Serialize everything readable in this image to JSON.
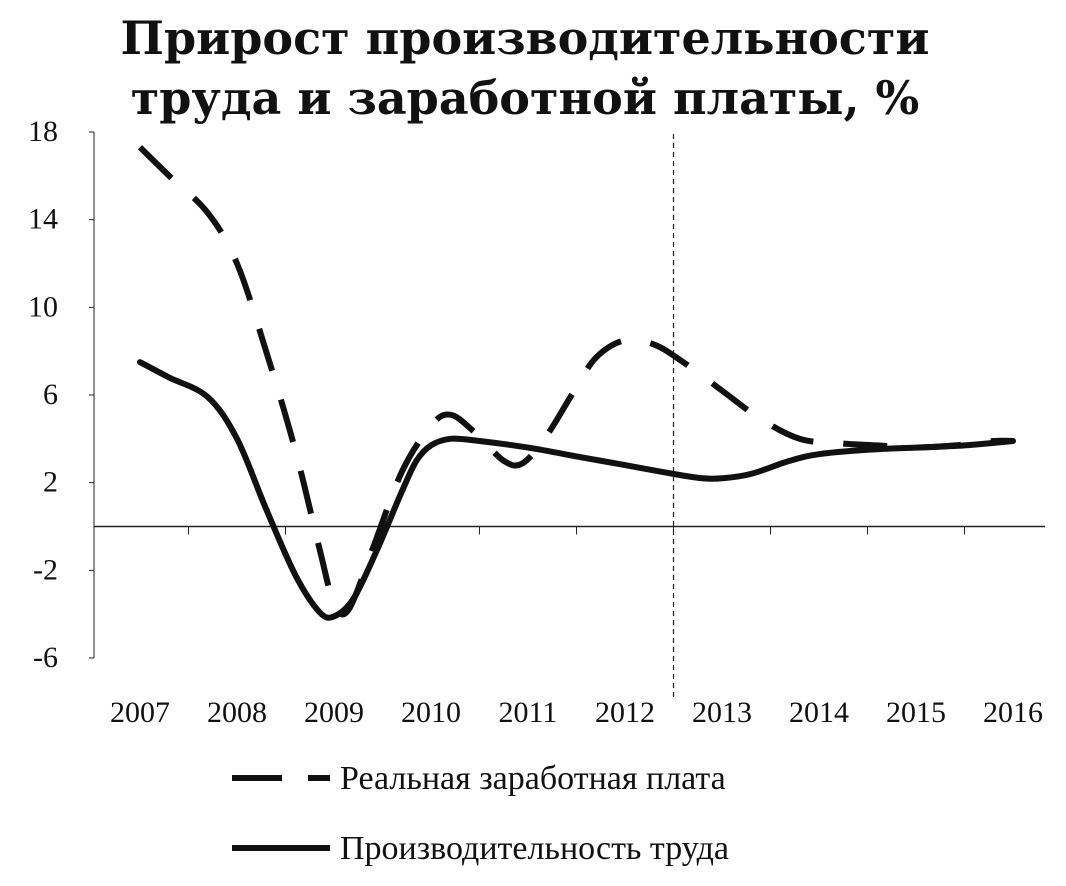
{
  "chart_data": {
    "type": "line",
    "title_lines": [
      "Прирост производительности",
      "труда и заработной платы, %"
    ],
    "xlabel": "",
    "ylabel": "",
    "categories": [
      "2007",
      "2008",
      "2009",
      "2010",
      "2011",
      "2012",
      "2013",
      "2014",
      "2015",
      "2016"
    ],
    "ylim": [
      -6,
      18
    ],
    "yticks": [
      18,
      14,
      10,
      6,
      2,
      -2,
      -6
    ],
    "grid": false,
    "forecast_divider_at_year": 2012.5,
    "series": [
      {
        "name": "Реальная заработная плата",
        "style": "dashed",
        "points": [
          [
            2007.0,
            17.3
          ],
          [
            2007.3,
            16.0
          ],
          [
            2007.7,
            14.3
          ],
          [
            2008.0,
            12.0
          ],
          [
            2008.3,
            8.0
          ],
          [
            2008.6,
            3.5
          ],
          [
            2008.85,
            -1.0
          ],
          [
            2009.0,
            -3.5
          ],
          [
            2009.15,
            -3.8
          ],
          [
            2009.4,
            -1.0
          ],
          [
            2009.7,
            2.5
          ],
          [
            2010.0,
            4.6
          ],
          [
            2010.2,
            5.1
          ],
          [
            2010.45,
            4.3
          ],
          [
            2010.75,
            3.0
          ],
          [
            2010.95,
            2.9
          ],
          [
            2011.2,
            4.2
          ],
          [
            2011.45,
            6.0
          ],
          [
            2011.7,
            7.7
          ],
          [
            2012.0,
            8.5
          ],
          [
            2012.3,
            8.3
          ],
          [
            2012.6,
            7.5
          ],
          [
            2013.0,
            6.2
          ],
          [
            2013.4,
            4.9
          ],
          [
            2013.8,
            4.0
          ],
          [
            2014.2,
            3.8
          ],
          [
            2014.6,
            3.7
          ],
          [
            2015.0,
            3.6
          ],
          [
            2015.4,
            3.7
          ],
          [
            2015.8,
            3.9
          ],
          [
            2016.0,
            3.9
          ]
        ]
      },
      {
        "name": "Производительность труда",
        "style": "solid",
        "points": [
          [
            2007.0,
            7.5
          ],
          [
            2007.3,
            6.8
          ],
          [
            2007.7,
            5.9
          ],
          [
            2008.0,
            4.0
          ],
          [
            2008.3,
            0.8
          ],
          [
            2008.6,
            -2.2
          ],
          [
            2008.85,
            -3.9
          ],
          [
            2009.0,
            -4.1
          ],
          [
            2009.2,
            -3.3
          ],
          [
            2009.45,
            -1.0
          ],
          [
            2009.7,
            1.6
          ],
          [
            2009.85,
            3.0
          ],
          [
            2010.0,
            3.7
          ],
          [
            2010.2,
            4.0
          ],
          [
            2010.5,
            3.9
          ],
          [
            2011.0,
            3.6
          ],
          [
            2011.5,
            3.2
          ],
          [
            2012.0,
            2.8
          ],
          [
            2012.5,
            2.4
          ],
          [
            2012.8,
            2.2
          ],
          [
            2013.0,
            2.2
          ],
          [
            2013.3,
            2.4
          ],
          [
            2013.7,
            3.0
          ],
          [
            2014.0,
            3.3
          ],
          [
            2014.5,
            3.5
          ],
          [
            2015.0,
            3.6
          ],
          [
            2015.5,
            3.7
          ],
          [
            2016.0,
            3.9
          ]
        ]
      }
    ]
  }
}
